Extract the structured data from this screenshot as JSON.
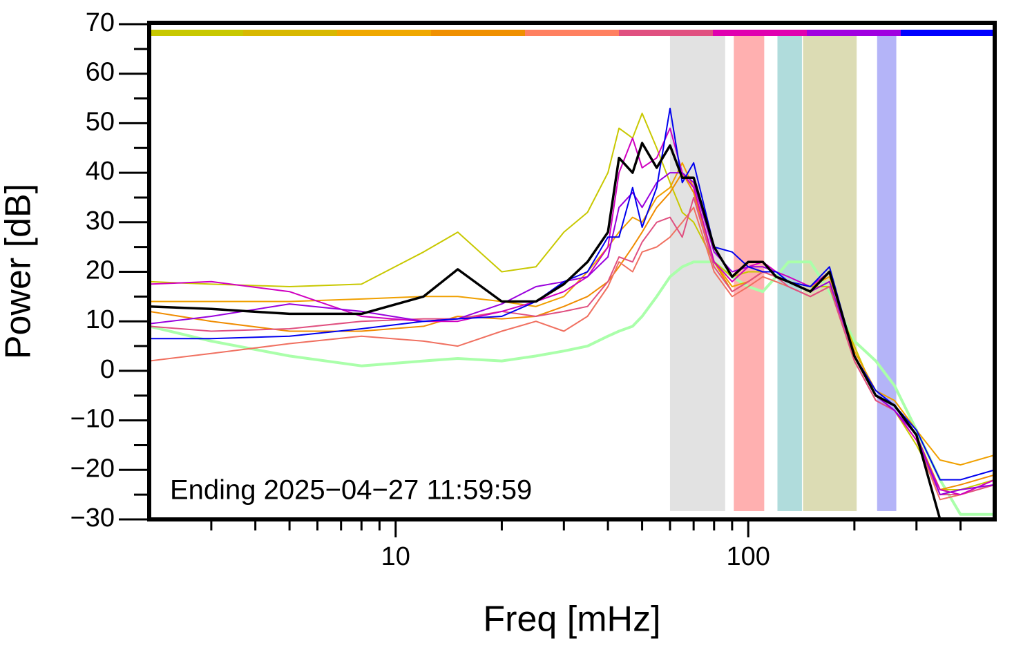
{
  "chart_data": {
    "type": "line",
    "xlabel": "Freq [mHz]",
    "ylabel": "Power [dB]",
    "annotation": "Ending 2025−04−27 11:59:59",
    "xscale": "log",
    "xlim": [
      2,
      500
    ],
    "ylim": [
      -30,
      70
    ],
    "xticks": [
      10,
      100
    ],
    "xminorticks": [
      3,
      4,
      5,
      6,
      7,
      8,
      9,
      20,
      30,
      40,
      50,
      60,
      70,
      80,
      90,
      200,
      300,
      400
    ],
    "yticks": [
      {
        "value": -30,
        "label": "−30"
      },
      {
        "value": -20,
        "label": "−20"
      },
      {
        "value": -10,
        "label": "−10"
      },
      0,
      10,
      20,
      30,
      40,
      50,
      60,
      70
    ],
    "yminorticks": [
      -25,
      -15,
      -5,
      5,
      15,
      25,
      35,
      45,
      55,
      65
    ],
    "bands": [
      {
        "x": [
          60,
          86
        ],
        "color": "#e2e2e2"
      },
      {
        "x": [
          91,
          111
        ],
        "color": "#ffb0b0"
      },
      {
        "x": [
          121,
          142
        ],
        "color": "#b0dcdc"
      },
      {
        "x": [
          143,
          203
        ],
        "color": "#dcdcb4"
      },
      {
        "x": [
          232,
          263
        ],
        "color": "#b4b4f8"
      }
    ],
    "strip_colors": [
      "#c8c800",
      "#d8b800",
      "#f0a800",
      "#f09000",
      "#ff8060",
      "#e05080",
      "#e000b0",
      "#a000e0",
      "#0000ff"
    ],
    "x": [
      2,
      3,
      5,
      8,
      12,
      15,
      20,
      25,
      30,
      35,
      40,
      43,
      47,
      50,
      55,
      60,
      65,
      70,
      80,
      90,
      100,
      110,
      120,
      130,
      150,
      170,
      200,
      230,
      260,
      300,
      350,
      400,
      500
    ],
    "series": [
      {
        "color": "#aaffaa",
        "width": 4,
        "values": [
          9,
          6,
          3,
          1,
          2,
          2.5,
          2,
          3,
          4,
          5,
          7,
          8,
          9,
          11,
          15,
          19,
          21,
          22,
          22,
          19,
          17,
          16,
          19,
          22,
          22,
          16,
          6,
          2,
          -3,
          -12,
          -22,
          -29,
          -29
        ]
      },
      {
        "color": "#c8c800",
        "width": 2,
        "values": [
          18,
          17.5,
          17,
          17.5,
          24,
          28,
          20,
          21,
          28,
          32,
          40,
          49,
          47,
          52,
          45,
          38,
          32,
          30,
          22,
          19,
          20,
          20,
          19,
          18,
          17,
          17,
          5,
          -5,
          -8,
          -15,
          -24,
          -24,
          -22
        ]
      },
      {
        "color": "#f0a000",
        "width": 2,
        "values": [
          14,
          14,
          14,
          14.5,
          15,
          15,
          14,
          13,
          15,
          20,
          25,
          28,
          31,
          30,
          35,
          37,
          42,
          37,
          22,
          17,
          18,
          20,
          19,
          18,
          17,
          19,
          4,
          -4,
          -6,
          -12,
          -18,
          -19,
          -17
        ]
      },
      {
        "color": "#f08c00",
        "width": 2,
        "values": [
          12,
          10,
          8,
          8,
          9,
          11,
          10.5,
          11,
          13,
          15,
          18,
          21,
          25,
          28,
          33,
          36,
          40,
          36,
          22,
          16,
          18,
          20,
          19,
          18,
          16,
          18,
          3,
          -5,
          -7,
          -13,
          -24,
          -23,
          -21
        ]
      },
      {
        "color": "#f07060",
        "width": 2,
        "values": [
          2,
          3.5,
          5.5,
          7,
          6,
          5,
          8,
          10,
          8,
          11,
          17,
          22,
          20,
          24,
          25,
          27,
          30,
          33,
          20,
          15,
          17,
          19,
          18,
          17,
          15,
          17,
          2,
          -6,
          -8,
          -14,
          -26,
          -25,
          -23
        ]
      },
      {
        "color": "#e05080",
        "width": 2,
        "values": [
          9,
          8,
          8.5,
          10,
          10.5,
          10.5,
          12,
          11,
          12,
          13,
          18,
          23,
          22,
          26,
          30,
          31,
          27,
          35,
          21,
          16,
          18,
          20,
          19,
          17,
          15,
          17,
          2,
          -6,
          -8,
          -14,
          -25,
          -25,
          -23
        ]
      },
      {
        "color": "#d000c0",
        "width": 2,
        "values": [
          17.5,
          18,
          16,
          11,
          10,
          10,
          12,
          14,
          16,
          19,
          25,
          40,
          47,
          41,
          43,
          49,
          40,
          37,
          22,
          18,
          21,
          22,
          20,
          19,
          17,
          20,
          3,
          -5,
          -8,
          -14,
          -24,
          -25,
          -22
        ]
      },
      {
        "color": "#9900dd",
        "width": 2,
        "values": [
          9.5,
          11,
          13.5,
          12,
          10,
          10.5,
          13.5,
          17,
          18,
          19,
          23,
          33,
          36,
          33,
          38,
          40,
          40,
          38,
          24,
          20,
          21,
          21,
          20,
          18,
          16,
          18,
          3,
          -5,
          -8,
          -13,
          -25,
          -24,
          -23
        ]
      },
      {
        "color": "#0000ee",
        "width": 2,
        "values": [
          6.5,
          6.5,
          7,
          8.5,
          10,
          10.5,
          11,
          14,
          18,
          20,
          27,
          27,
          37,
          29,
          37,
          53,
          38,
          42,
          25,
          24,
          21,
          20,
          20,
          18,
          17,
          21,
          3,
          -4,
          -7,
          -12,
          -22,
          -22,
          -20
        ]
      },
      {
        "color": "#000000",
        "width": 3.5,
        "values": [
          13,
          12.5,
          11.5,
          11.5,
          15,
          20.5,
          14,
          14,
          17.5,
          22,
          28,
          43,
          40,
          46,
          41,
          45.5,
          39,
          39,
          25,
          19,
          22,
          22,
          19,
          18,
          16,
          20,
          3,
          -5,
          -7,
          -13,
          -30,
          null,
          null
        ]
      }
    ]
  }
}
